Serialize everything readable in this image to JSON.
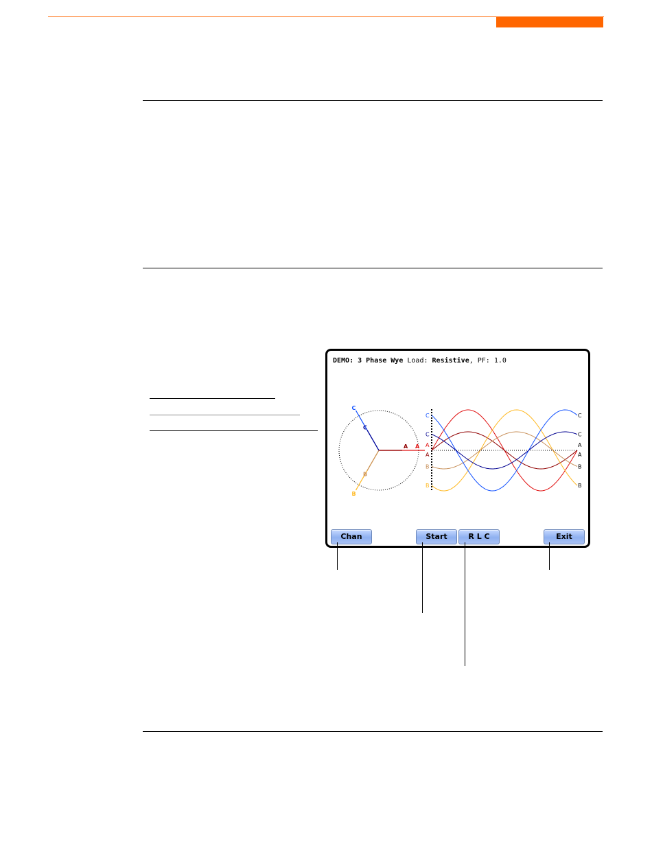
{
  "header": {
    "accent_color": "#ff6600"
  },
  "screen": {
    "title": {
      "mode": "DEMO: 3 Phase Wye",
      "load_label": "Load:",
      "load_value": "Resistive",
      "pf_label": ", PF:",
      "pf_value": "1.0"
    },
    "buttons": [
      {
        "label": "Chan"
      },
      {
        "label": "Start"
      },
      {
        "label": "R L C"
      },
      {
        "label": "Exit"
      }
    ],
    "phases": [
      {
        "name": "A",
        "angle_deg": 0,
        "voltage_color": "#e01010",
        "current_color": "#900000"
      },
      {
        "name": "B",
        "angle_deg": -120,
        "voltage_color": "#ffb820",
        "current_color": "#c8905a"
      },
      {
        "name": "C",
        "angle_deg": 120,
        "voltage_color": "#1050ff",
        "current_color": "#000090"
      }
    ]
  }
}
